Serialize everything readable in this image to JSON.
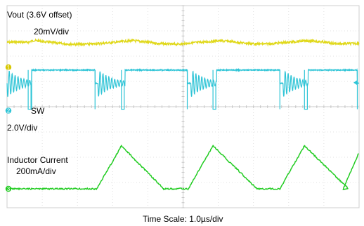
{
  "chart_data": {
    "type": "line",
    "title": "",
    "footer": "Time Scale: 1.0µs/div",
    "x_units": "µs",
    "x_range": [
      0,
      10
    ],
    "grid": {
      "columns": 10,
      "rows": 8,
      "minor_ticks_per_div": 5,
      "show": true
    },
    "series": [
      {
        "name": "Vout (3.6V offset)",
        "scale": "20mV/div",
        "color": "#e0d81a",
        "marker_label": "",
        "marker_color": "",
        "baseline_div": 1.45,
        "shape": "ripple",
        "samples": [
          [
            0.0,
            0.0
          ],
          [
            0.3,
            -0.01
          ],
          [
            0.6,
            0.0
          ],
          [
            0.75,
            -0.07
          ],
          [
            0.9,
            -0.05
          ],
          [
            1.2,
            0.0
          ],
          [
            1.6,
            0.06
          ],
          [
            2.0,
            0.08
          ],
          [
            2.4,
            0.07
          ],
          [
            2.8,
            0.03
          ],
          [
            3.1,
            0.0
          ],
          [
            3.4,
            -0.05
          ],
          [
            3.6,
            -0.06
          ],
          [
            3.9,
            -0.02
          ],
          [
            4.3,
            0.05
          ],
          [
            4.7,
            0.08
          ],
          [
            5.0,
            0.06
          ],
          [
            5.3,
            0.02
          ],
          [
            5.7,
            -0.02
          ],
          [
            6.0,
            -0.06
          ],
          [
            6.3,
            -0.04
          ],
          [
            6.7,
            0.03
          ],
          [
            7.1,
            0.07
          ],
          [
            7.5,
            0.06
          ],
          [
            7.9,
            0.01
          ],
          [
            8.3,
            -0.04
          ],
          [
            8.6,
            -0.06
          ],
          [
            8.9,
            -0.02
          ],
          [
            9.3,
            0.05
          ],
          [
            9.6,
            0.06
          ],
          [
            10.0,
            0.04
          ]
        ]
      },
      {
        "name": "SW",
        "scale": "2.0V/div",
        "color": "#2ec4d6",
        "marker_label": "1",
        "marker_color": "#d7c700",
        "high_div": 2.55,
        "low_div": 4.1,
        "ringing_start": [
          0.0,
          2.58,
          3.35,
          5.22,
          7.84
        ],
        "ringing_decay_us": 0.9,
        "off_edges_us": [
          0.6,
          3.25,
          5.85,
          8.45
        ],
        "on_edges_us": [
          0.7,
          2.5,
          5.12,
          7.75,
          9.95
        ],
        "high_intervals_us": [
          [
            0.7,
            2.5
          ],
          [
            3.35,
            5.12
          ],
          [
            5.95,
            7.75
          ],
          [
            8.55,
            9.95
          ]
        ]
      },
      {
        "name": "Inductor Current",
        "scale": "200mA/div",
        "color": "#22cc22",
        "marker_label": "2",
        "marker_color": "#2ec4d6",
        "baseline_div": 7.25,
        "peaks": [
          {
            "start_us": 0.0,
            "rise_start_us": 0.0,
            "peak_us": 0.0,
            "peak_div": 7.25
          },
          {
            "rise_start_us": 2.55,
            "peak_us": 3.25,
            "fall_end_us": 4.45,
            "peak_div": 5.55
          },
          {
            "rise_start_us": 5.15,
            "peak_us": 5.85,
            "fall_end_us": 7.1,
            "peak_div": 5.55
          },
          {
            "rise_start_us": 7.75,
            "peak_us": 8.45,
            "fall_end_us": 9.7,
            "peak_div": 5.55
          },
          {
            "rise_start_us": 9.55,
            "peak_us": 10.0,
            "fall_end_us": 10.0,
            "peak_div": 5.8
          }
        ]
      }
    ],
    "extra_markers": [
      {
        "label": "3",
        "color": "#22cc22"
      }
    ]
  }
}
